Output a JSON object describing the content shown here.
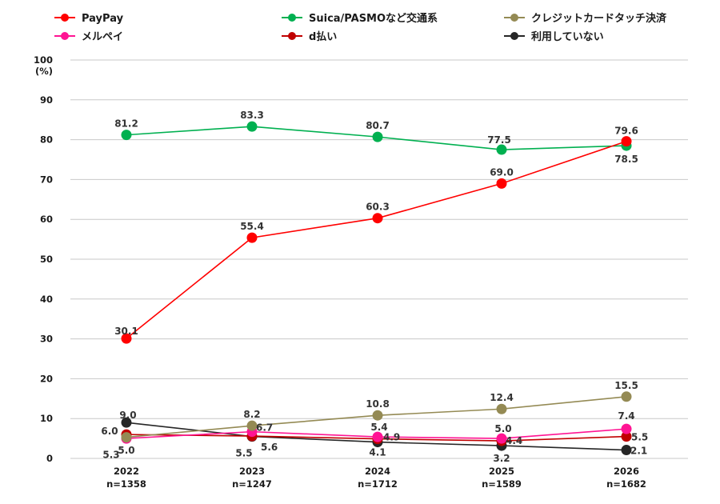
{
  "chart_data": {
    "type": "line",
    "title": "",
    "xlabel": "",
    "ylabel": "",
    "y_unit": "(%)",
    "ylim": [
      0,
      100
    ],
    "y_ticks": [
      0,
      10,
      20,
      30,
      40,
      50,
      60,
      70,
      80,
      90,
      100
    ],
    "grid": true,
    "legend_position": "top",
    "categories": [
      "2022",
      "2023",
      "2024",
      "2025",
      "2026"
    ],
    "category_sublabels": [
      "n=1358",
      "n=1247",
      "n=1712",
      "n=1589",
      "n=1682"
    ],
    "series": [
      {
        "name": "PayPay",
        "color": "#ff0000",
        "values": [
          30.1,
          55.4,
          60.3,
          69.0,
          79.6
        ]
      },
      {
        "name": "Suica/PASMOなど交通系",
        "color": "#00b050",
        "values": [
          81.2,
          83.3,
          80.7,
          77.5,
          78.5
        ]
      },
      {
        "name": "クレジットカードタッチ決済",
        "color": "#948a54",
        "values": [
          5.3,
          8.2,
          10.8,
          12.4,
          15.5
        ]
      },
      {
        "name": "メルペイ",
        "color": "#ff1493",
        "values": [
          5.0,
          6.7,
          5.4,
          5.0,
          7.4
        ]
      },
      {
        "name": "d払い",
        "color": "#c00000",
        "values": [
          6.0,
          5.6,
          4.9,
          4.4,
          5.5
        ]
      },
      {
        "name": "利用していない",
        "color": "#262626",
        "values": [
          9.0,
          5.5,
          4.1,
          3.2,
          2.1
        ]
      }
    ],
    "value_labels": [
      [
        "30.1",
        "55.4",
        "60.3",
        "69.0",
        "79.6"
      ],
      [
        "81.2",
        "83.3",
        "80.7",
        "77.5",
        "78.5"
      ],
      [
        "5.3",
        "8.2",
        "10.8",
        "12.4",
        "15.5"
      ],
      [
        "5.0",
        "6.7",
        "5.4",
        "5.0",
        "7.4"
      ],
      [
        "6.0",
        "5.6",
        "4.9",
        "4.4",
        "5.5"
      ],
      [
        "9.0",
        "5.5",
        "4.1",
        "3.2",
        "2.1"
      ]
    ]
  }
}
